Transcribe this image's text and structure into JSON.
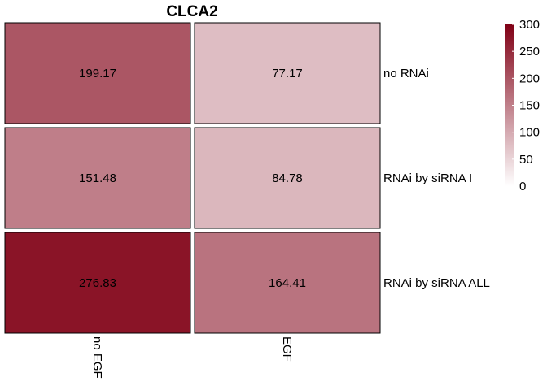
{
  "chart_data": {
    "type": "heatmap",
    "title": "CLCA2",
    "columns": [
      "no EGF",
      "EGF"
    ],
    "rows": [
      "no RNAi",
      "RNAi by siRNA I",
      "RNAi by siRNA ALL"
    ],
    "values": [
      [
        199.17,
        77.17
      ],
      [
        151.48,
        84.78
      ],
      [
        276.83,
        164.41
      ]
    ],
    "cell_labels": [
      [
        "199.17",
        "77.17"
      ],
      [
        "151.48",
        "84.78"
      ],
      [
        "276.83",
        "164.41"
      ]
    ],
    "color_scale": {
      "min": 0,
      "max": 300,
      "low_color": "#ffffff",
      "high_color": "#800015"
    },
    "legend": {
      "position": "right",
      "ticks": [
        0,
        50,
        100,
        150,
        200,
        250,
        300
      ],
      "tick_labels": [
        "0",
        "50",
        "100",
        "150",
        "200",
        "250",
        "300"
      ]
    }
  }
}
